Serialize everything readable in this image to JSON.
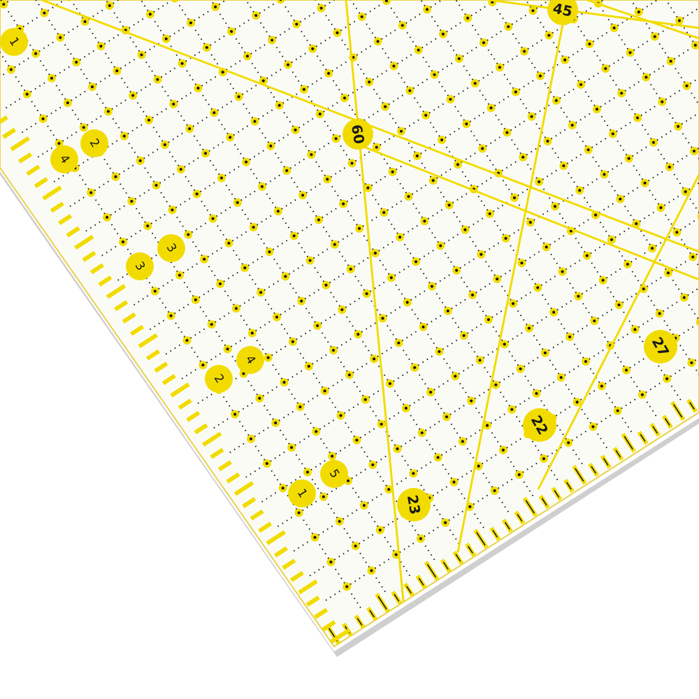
{
  "scene": {
    "subject": "quilting-ruler",
    "colors": {
      "ruler_yellow": "#f2dc00",
      "grid_dot": "#111111",
      "background": "#ffffff",
      "ruler_body": "#fbfbf6"
    }
  },
  "edge_numbers": [
    "1",
    "2",
    "4",
    "3",
    "3",
    "2",
    "4",
    "5",
    "1"
  ],
  "angle_labels": {
    "a60": "60",
    "a45": "45"
  },
  "edge_measure_labels": {
    "m23": "23",
    "m22": "22",
    "m27": "27"
  }
}
